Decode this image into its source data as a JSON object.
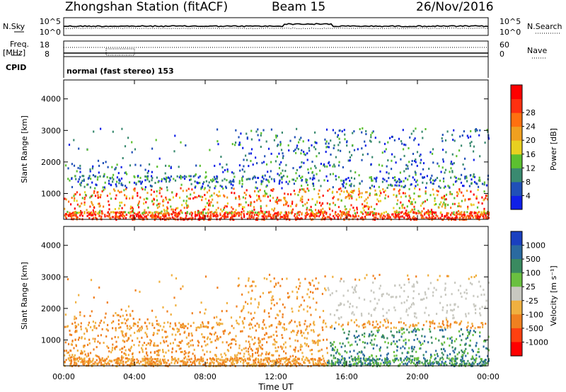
{
  "header": {
    "station": "Zhongshan Station (fitACF)",
    "beam": "Beam 15",
    "date": "26/Nov/2016"
  },
  "labels": {
    "nsky": "N.Sky",
    "nsearch": "N.Search",
    "freq": "Freq.",
    "mhz": "[MHz]",
    "nave": "Nave",
    "cpid": "CPID",
    "cpid_value": "normal (fast stereo) 153"
  },
  "ticks": {
    "noise_left": [
      "10^5",
      "10^0"
    ],
    "noise_right": [
      "10^5",
      "10^0"
    ],
    "freq_left": [
      "18",
      "8"
    ],
    "nave_right": [
      "60",
      "0"
    ]
  },
  "chart_data": [
    {
      "type": "heatmap",
      "panel": "power",
      "xlabel": "",
      "ylabel": "Slant Range [km]",
      "x_ticks": [
        "00:00",
        "04:00",
        "08:00",
        "12:00",
        "16:00",
        "20:00",
        "00:00"
      ],
      "y_ticks": [
        "1000",
        "2000",
        "3000",
        "4000"
      ],
      "ylim": [
        180,
        4600
      ],
      "colorbar": {
        "label": "Power [dB]",
        "ticks": [
          "4",
          "8",
          "12",
          "16",
          "20",
          "24",
          "28"
        ],
        "colors": [
          "#1020e8",
          "#2050b8",
          "#3a8a70",
          "#5cc030",
          "#e8d020",
          "#f0a020",
          "#ff7010",
          "#ff3010",
          "#ff0000"
        ]
      }
    },
    {
      "type": "heatmap",
      "panel": "velocity",
      "xlabel": "Time UT",
      "ylabel": "Slant Range [km]",
      "x_ticks": [
        "00:00",
        "04:00",
        "08:00",
        "12:00",
        "16:00",
        "20:00",
        "00:00"
      ],
      "y_ticks": [
        "1000",
        "2000",
        "3000",
        "4000"
      ],
      "ylim": [
        180,
        4600
      ],
      "colorbar": {
        "label": "Velocity [m s⁻¹]",
        "ticks": [
          "1000",
          "500",
          "100",
          "25",
          "-25",
          "-100",
          "-500",
          "-1000"
        ],
        "colors": [
          "#1a40c0",
          "#2a6aa0",
          "#3a8a60",
          "#6ac040",
          "#c8c8c0",
          "#f0b040",
          "#f08020",
          "#ff4010",
          "#ff0000"
        ]
      }
    }
  ]
}
